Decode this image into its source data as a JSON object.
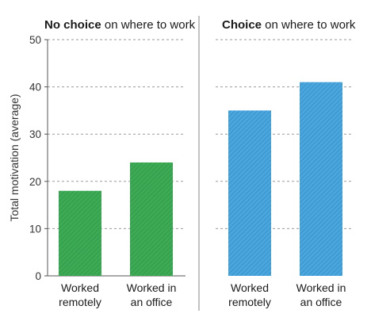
{
  "chart_data": {
    "type": "bar",
    "ylabel": "Total motivation (average)",
    "ylim": [
      0,
      50
    ],
    "yticks": [
      0,
      10,
      20,
      30,
      40,
      50
    ],
    "grid": true,
    "panels": [
      {
        "title_bold": "No choice",
        "title_rest": " on where to work",
        "categories": [
          [
            "Worked",
            "remotely"
          ],
          [
            "Worked in",
            "an office"
          ]
        ],
        "values": [
          18,
          24
        ],
        "color": "#3daa55",
        "stripe_color": "#2f9446"
      },
      {
        "title_bold": "Choice",
        "title_rest": " on where to work",
        "categories": [
          [
            "Worked",
            "remotely"
          ],
          [
            "Worked in",
            "an office"
          ]
        ],
        "values": [
          35,
          41
        ],
        "color": "#4aa6dc",
        "stripe_color": "#2f8cc6"
      }
    ]
  }
}
